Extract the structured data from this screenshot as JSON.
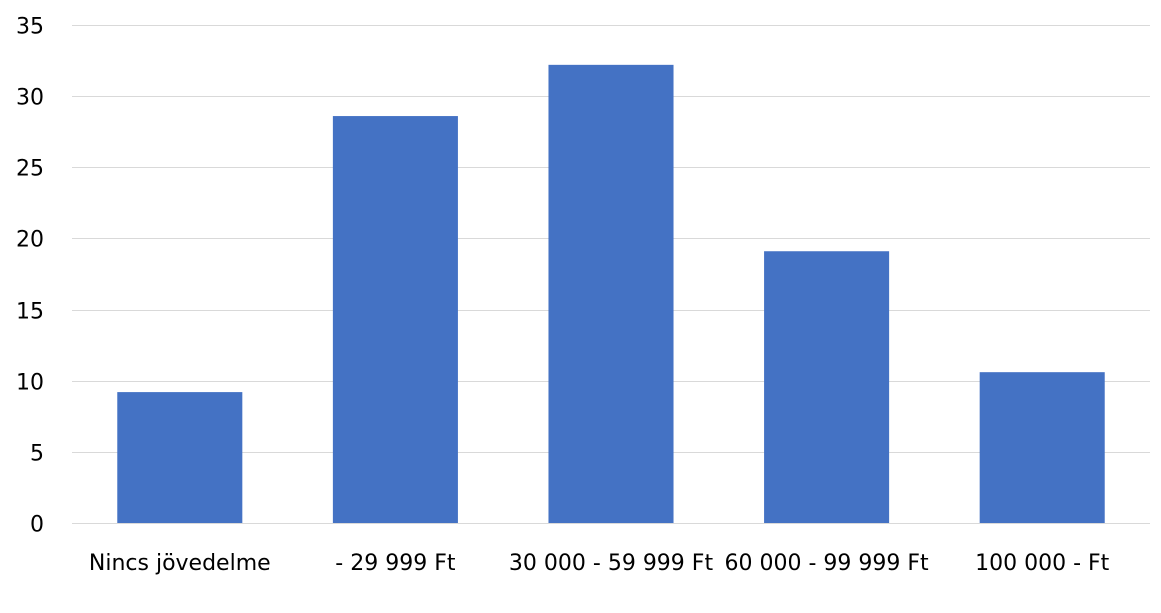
{
  "chart_data": {
    "type": "bar",
    "categories": [
      "Nincs jövedelme",
      "- 29 999 Ft",
      "30 000 - 59 999 Ft",
      "60 000 - 99 999 Ft",
      "100 000 - Ft"
    ],
    "values": [
      9.2,
      28.6,
      32.2,
      19.1,
      10.6
    ],
    "ylim": [
      0,
      35
    ],
    "yticks": [
      "0",
      "5",
      "10",
      "15",
      "20",
      "25",
      "30",
      "35"
    ],
    "grid": true,
    "legend": "none",
    "bar_color": "#4472c4",
    "grid_color": "#d9d9d9"
  }
}
